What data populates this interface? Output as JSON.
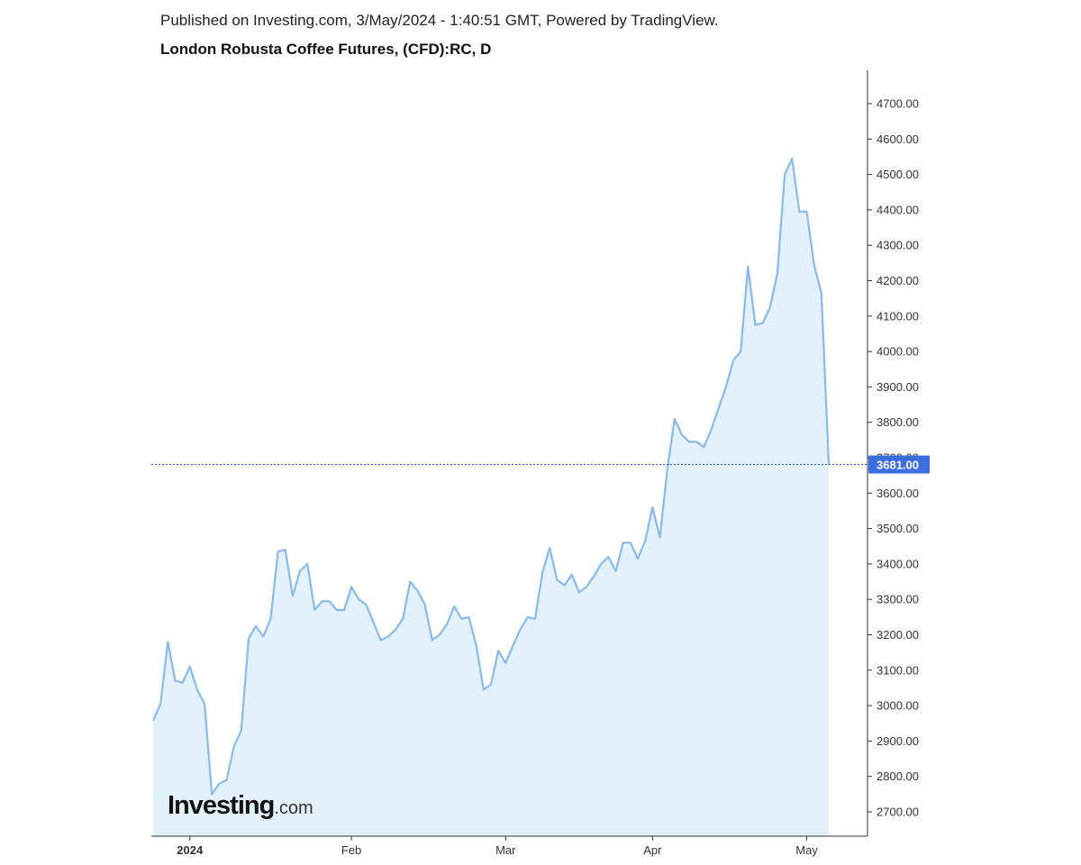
{
  "header": {
    "published": "Published on Investing.com, 3/May/2024 - 1:40:51 GMT, Powered by TradingView.",
    "title": "London Robusta Coffee Futures, (CFD):RC, D"
  },
  "logo": {
    "brand": "Investing",
    "tld": ".com"
  },
  "colors": {
    "line": "#8ab9ee",
    "area_fill": "#e2f1fb",
    "last_price_line": "#2e53c9",
    "last_price_bg": "#3b6fe0",
    "axis": "#333333"
  },
  "chart_data": {
    "type": "area",
    "title": "London Robusta Coffee Futures, (CFD):RC, D",
    "xlabel": "",
    "ylabel": "",
    "ylim": [
      2630,
      4800
    ],
    "y_ticks": [
      "2700.00",
      "2800.00",
      "2900.00",
      "3000.00",
      "3100.00",
      "3200.00",
      "3300.00",
      "3400.00",
      "3500.00",
      "3600.00",
      "3700.00",
      "3800.00",
      "3900.00",
      "4000.00",
      "4100.00",
      "4200.00",
      "4300.00",
      "4400.00",
      "4500.00",
      "4600.00",
      "4700.00"
    ],
    "x_ticks": [
      {
        "label": "2024",
        "index": 5,
        "bold": true
      },
      {
        "label": "Feb",
        "index": 27,
        "bold": false
      },
      {
        "label": "Mar",
        "index": 48,
        "bold": false
      },
      {
        "label": "Apr",
        "index": 68,
        "bold": false
      },
      {
        "label": "May",
        "index": 89,
        "bold": false
      }
    ],
    "last_price": 3681,
    "last_price_label": "3681.00",
    "grid": false,
    "legend": "none",
    "series": [
      {
        "values": [
          2958,
          3005,
          3180,
          3070,
          3065,
          3110,
          3045,
          3005,
          2750,
          2780,
          2790,
          2885,
          2930,
          3190,
          3225,
          3195,
          3245,
          3435,
          3440,
          3310,
          3380,
          3400,
          3270,
          3295,
          3295,
          3270,
          3270,
          3335,
          3300,
          3285,
          3235,
          3185,
          3195,
          3215,
          3245,
          3350,
          3325,
          3285,
          3185,
          3200,
          3230,
          3280,
          3245,
          3250,
          3170,
          3045,
          3060,
          3155,
          3120,
          3170,
          3215,
          3250,
          3245,
          3375,
          3445,
          3355,
          3340,
          3370,
          3320,
          3335,
          3365,
          3400,
          3420,
          3380,
          3460,
          3460,
          3415,
          3465,
          3560,
          3475,
          3665,
          3810,
          3765,
          3745,
          3745,
          3730,
          3780,
          3840,
          3900,
          3975,
          4000,
          4240,
          4075,
          4080,
          4125,
          4220,
          4500,
          4545,
          4395,
          4395,
          4245,
          4165,
          3681
        ]
      }
    ]
  }
}
